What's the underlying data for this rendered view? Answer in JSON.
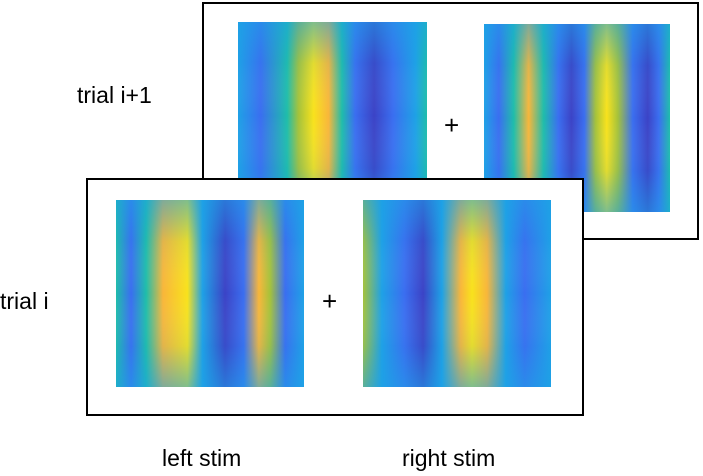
{
  "trials": {
    "next": {
      "label": "trial i+1",
      "separator": "+"
    },
    "current": {
      "label": "trial i",
      "separator": "+"
    }
  },
  "columns": {
    "left_label": "left stim",
    "right_label": "right stim"
  },
  "colormap": [
    "#3b43c6",
    "#3a6ef0",
    "#1ea1e6",
    "#1ebdaa",
    "#a5c23a",
    "#f8b63a",
    "#f8e21c"
  ]
}
